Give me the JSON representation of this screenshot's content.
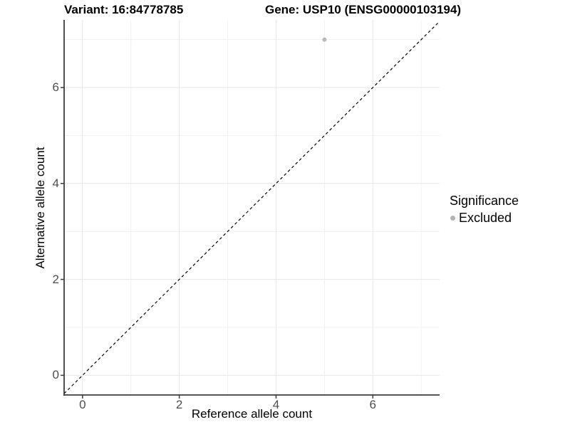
{
  "titles": {
    "variant": "Variant: 16:84778785",
    "gene": "Gene: USP10 (ENSG00000103194)"
  },
  "chart_data": {
    "type": "scatter",
    "title_left": "Variant: 16:84778785",
    "title_right": "Gene: USP10 (ENSG00000103194)",
    "xlabel": "Reference allele count",
    "ylabel": "Alternative allele count",
    "xlim": [
      -0.38,
      7.38
    ],
    "ylim": [
      -0.41,
      7.41
    ],
    "x_ticks": [
      0,
      2,
      4,
      6
    ],
    "x_tick_labels": [
      "0",
      "2",
      "4",
      "6"
    ],
    "y_ticks": [
      0,
      2,
      4,
      6
    ],
    "y_tick_labels": [
      "0",
      "2",
      "4",
      "6"
    ],
    "grid_major_x": [
      0,
      2,
      4,
      6
    ],
    "grid_minor_x": [
      1,
      3,
      5,
      7
    ],
    "grid_major_y": [
      0,
      2,
      4,
      6
    ],
    "grid_minor_y": [
      1,
      3,
      5,
      7
    ],
    "grid_on": true,
    "series": [
      {
        "name": "Excluded",
        "points": [
          {
            "x": 5,
            "y": 7
          }
        ],
        "color": "#b9b9b9"
      }
    ],
    "identity_line": {
      "type": "dashed",
      "slope": 1,
      "intercept": 0,
      "color": "#000000"
    },
    "legend": {
      "title": "Significance",
      "position": "right",
      "entries": [
        {
          "label": "Excluded",
          "color": "#b3b3b3"
        }
      ]
    },
    "colors": {
      "grid_major": "#e7e7e7",
      "grid_minor": "#f1f1f1",
      "axis_line": "#3c3c3c",
      "tick_text": "#4d4d4d",
      "point": "#b9b9b9"
    }
  }
}
